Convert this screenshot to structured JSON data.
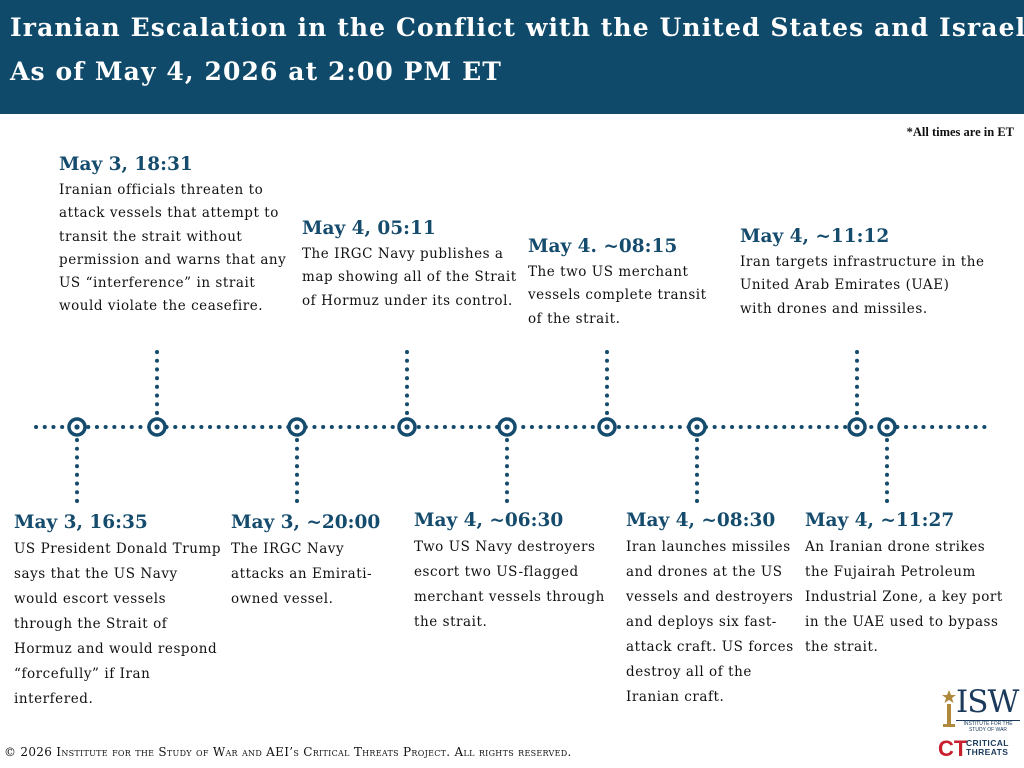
{
  "header": {
    "title_line1": "Iranian Escalation in the Conflict with the United States and Israel",
    "title_line2": "As of May 4, 2026 at 2:00 PM ET"
  },
  "note": "*All times are in ET",
  "events_top": [
    {
      "date": "May 3, 18:31",
      "text": "Iranian officials threaten to attack vessels that attempt to transit the strait without permission and warns that any US “interference” in strait would violate the ceasefire."
    },
    {
      "date": "May 4, 05:11",
      "text": "The IRGC Navy publishes a map showing all of the Strait of Hormuz under its control."
    },
    {
      "date": "May 4. ~08:15",
      "text": "The two US merchant vessels complete transit of the strait."
    },
    {
      "date": "May 4, ~11:12",
      "text": "Iran targets infrastructure in the United Arab Emirates (UAE) with drones and missiles."
    }
  ],
  "events_bottom": [
    {
      "date": "May 3, 16:35",
      "text": "US President Donald Trump says that the US Navy would escort vessels through the Strait of Hormuz and would respond “forcefully” if Iran interfered."
    },
    {
      "date": "May 3, ~20:00",
      "text": "The IRGC Navy attacks an Emirati-owned vessel."
    },
    {
      "date": "May 4, ~06:30",
      "text": "Two US Navy destroyers escort two US-flagged merchant vessels through the strait."
    },
    {
      "date": "May 4, ~08:30",
      "text": "Iran launches missiles and drones at the US vessels and destroyers and deploys six fast-attack craft. US forces destroy all of the Iranian craft."
    },
    {
      "date": "May 4, ~11:27",
      "text": "An Iranian drone strikes the Fujairah Petroleum Industrial Zone, a key port in the UAE used to bypass the strait."
    }
  ],
  "footer": {
    "prefix": "© 2026 ",
    "text": "Institute for the Study of War and AEI’s Critical Threats Project. All rights reserved."
  },
  "logos": {
    "isw": "ISW",
    "isw_sub": "INSTITUTE FOR THE STUDY OF WAR",
    "ct_mark": "CT",
    "ct_line1": "CRITICAL",
    "ct_line2": "THREATS"
  },
  "colors": {
    "header_bg": "#0f4a6b",
    "timeline": "#154b6c",
    "date_text": "#154b6c",
    "ct_red": "#c8202f"
  }
}
